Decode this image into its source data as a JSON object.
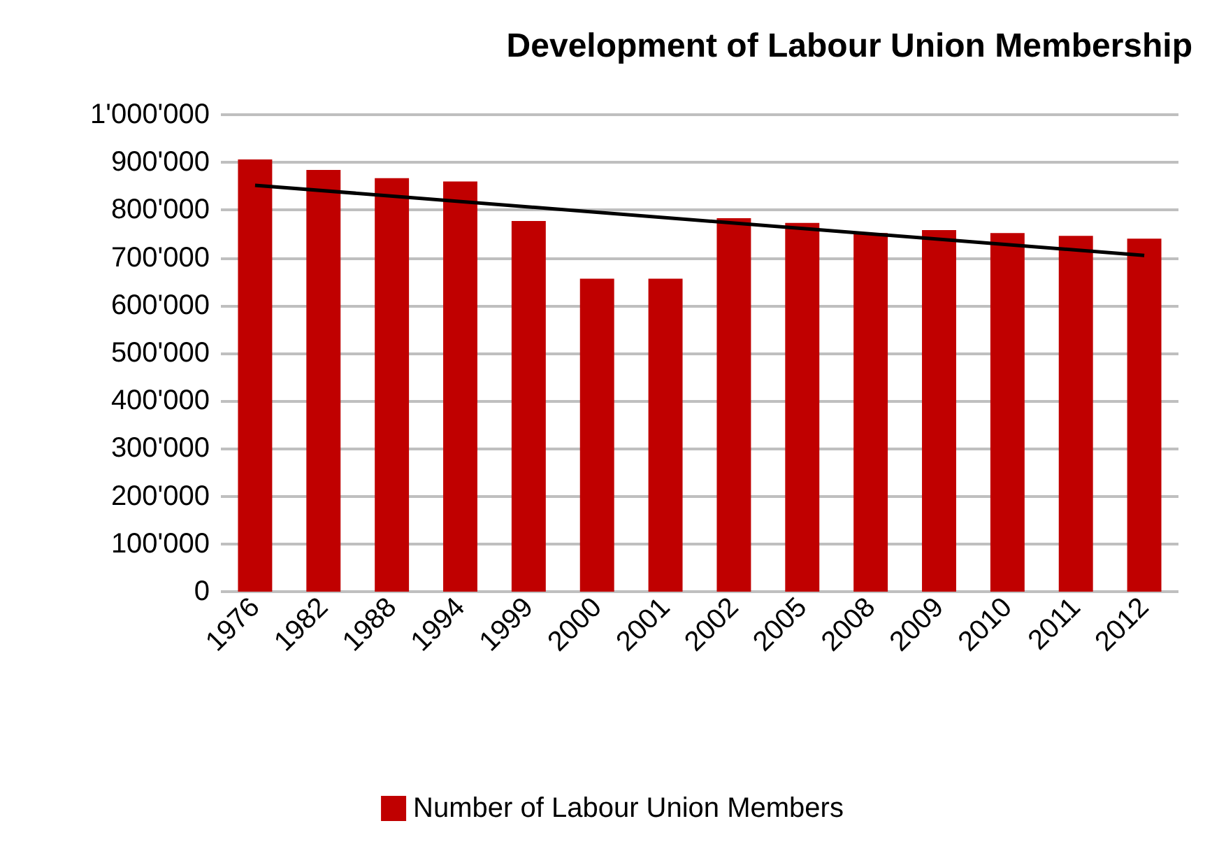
{
  "chart_data": {
    "type": "bar",
    "title": "Development of Labour Union Membership",
    "categories": [
      "1976",
      "1982",
      "1988",
      "1994",
      "1999",
      "2000",
      "2001",
      "2002",
      "2005",
      "2008",
      "2009",
      "2010",
      "2011",
      "2012"
    ],
    "series": [
      {
        "name": "Number of Labour Union Members",
        "color": "#c00000",
        "values": [
          906000,
          884000,
          867000,
          860000,
          777000,
          656000,
          656000,
          783000,
          773000,
          752000,
          758000,
          752000,
          746000,
          740000
        ]
      },
      {
        "type": "line",
        "color": "#000000",
        "values": [
          852000,
          null,
          null,
          null,
          null,
          null,
          null,
          null,
          null,
          null,
          null,
          null,
          null,
          705000
        ],
        "marker": "none"
      }
    ],
    "ylim": [
      0,
      1000000
    ],
    "yticks": [
      0,
      {
        "value": 100000,
        "label": "100'000"
      },
      {
        "value": 200000,
        "label": "200'000"
      },
      {
        "value": 300000,
        "label": "300'000"
      },
      {
        "value": 400000,
        "label": "400'000"
      },
      {
        "value": 500000,
        "label": "500'000"
      },
      {
        "value": 600000,
        "label": "600'000"
      },
      {
        "value": 700000,
        "label": "700'000"
      },
      {
        "value": 800000,
        "label": "800'000"
      },
      {
        "value": 900000,
        "label": "900'000"
      },
      {
        "value": 1000000,
        "label": "1'000'000"
      }
    ],
    "grid": "y",
    "legend": "bottom"
  }
}
